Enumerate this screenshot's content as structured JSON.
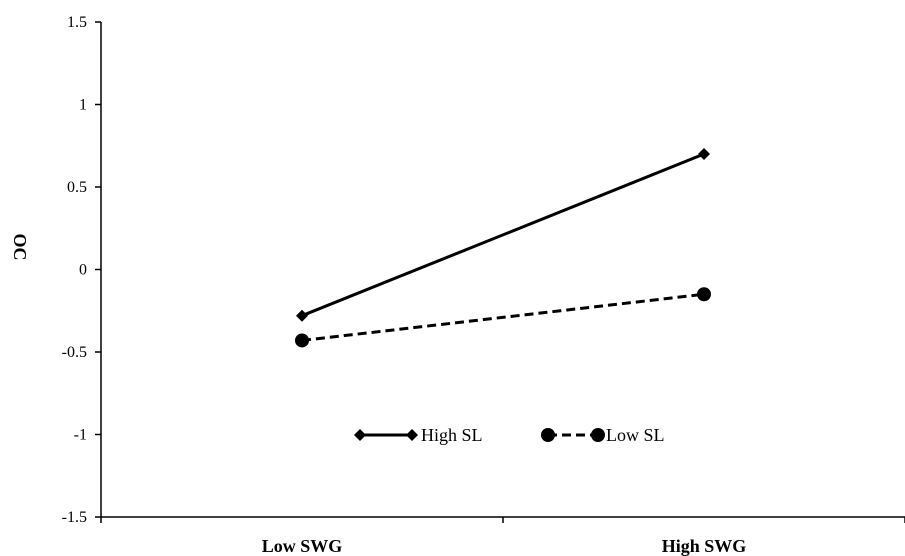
{
  "chart_data": {
    "type": "line",
    "title": "",
    "xlabel": "",
    "ylabel": "OC",
    "categories": [
      "Low SWG",
      "High SWG"
    ],
    "ylim": [
      -1.5,
      1.5
    ],
    "yticks": [
      1.5,
      1,
      0.5,
      0,
      -0.5,
      -1,
      -1.5
    ],
    "ytick_labels": [
      "1.5",
      "1",
      "0.5",
      "0",
      "-0.5",
      "-1",
      "-1.5"
    ],
    "grid": false,
    "legend_position": "inside-lower-center",
    "series": [
      {
        "name": "High SL",
        "values": [
          -0.28,
          0.7
        ],
        "marker": "diamond",
        "line": "solid",
        "color": "#000000"
      },
      {
        "name": "Low SL",
        "values": [
          -0.43,
          -0.15
        ],
        "marker": "circle",
        "line": "dashed",
        "color": "#000000"
      }
    ]
  }
}
